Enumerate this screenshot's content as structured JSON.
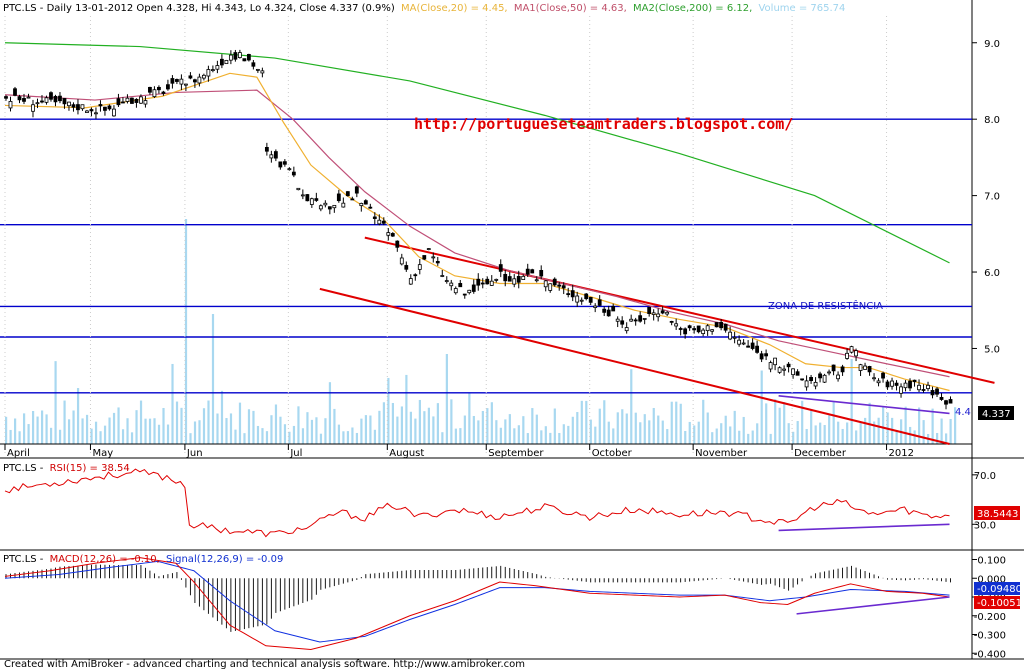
{
  "footer": "Created with AmiBroker - advanced charting and technical analysis software. http://www.amibroker.com",
  "chart_data": [
    {
      "type": "candlestick",
      "panel": "price",
      "symbol": "PTC.LS",
      "header": {
        "prefix": "PTC.LS - Daily 13-01-2012 Open 4.328, Hi 4.343, Lo 4.324, Close 4.337 (0.9%)",
        "ma20": "MA(Close,20) = 4.45,",
        "ma50": "MA1(Close,50) = 4.63,",
        "ma200": "MA2(Close,200) = 6.12,",
        "volume": "Volume = 765.74"
      },
      "y_ticks": [
        "9.0",
        "8.0",
        "7.0",
        "6.0",
        "5.0"
      ],
      "ylim": [
        3.75,
        9.35
      ],
      "last_price_label": "4.337",
      "ma_label": "4.4",
      "months": [
        "April",
        "May",
        "Jun",
        "Jul",
        "August",
        "September",
        "October",
        "November",
        "December",
        "2012"
      ],
      "annotations": {
        "url": "http://portugueseteamtraders.blogspot.com/",
        "zone": "ZONA DE RESISTÊNCIA"
      },
      "horizontal_levels": [
        8.0,
        6.62,
        5.55,
        5.15,
        4.42
      ],
      "close_path": [
        [
          0,
          8.28
        ],
        [
          10,
          8.22
        ],
        [
          22,
          8.12
        ],
        [
          35,
          8.38
        ],
        [
          43,
          8.55
        ],
        [
          50,
          8.85
        ],
        [
          54,
          8.78
        ],
        [
          57,
          8.6
        ],
        [
          58,
          7.55
        ],
        [
          62,
          7.38
        ],
        [
          66,
          7.05
        ],
        [
          70,
          6.82
        ],
        [
          74,
          6.92
        ],
        [
          78,
          6.98
        ],
        [
          82,
          6.72
        ],
        [
          86,
          6.45
        ],
        [
          90,
          5.92
        ],
        [
          94,
          6.28
        ],
        [
          98,
          5.88
        ],
        [
          102,
          5.72
        ],
        [
          106,
          5.82
        ],
        [
          110,
          5.95
        ],
        [
          114,
          5.88
        ],
        [
          118,
          5.95
        ],
        [
          122,
          5.82
        ],
        [
          126,
          5.72
        ],
        [
          130,
          5.62
        ],
        [
          134,
          5.48
        ],
        [
          138,
          5.3
        ],
        [
          142,
          5.42
        ],
        [
          146,
          5.52
        ],
        [
          150,
          5.25
        ],
        [
          154,
          5.22
        ],
        [
          158,
          5.32
        ],
        [
          162,
          5.15
        ],
        [
          166,
          4.98
        ],
        [
          170,
          4.85
        ],
        [
          174,
          4.72
        ],
        [
          178,
          4.58
        ],
        [
          182,
          4.62
        ],
        [
          186,
          4.72
        ],
        [
          188,
          5.05
        ],
        [
          190,
          4.78
        ],
        [
          194,
          4.58
        ],
        [
          198,
          4.52
        ],
        [
          202,
          4.55
        ],
        [
          206,
          4.45
        ],
        [
          208,
          4.32
        ],
        [
          210,
          4.337
        ]
      ],
      "ma20_path": [
        [
          0,
          8.18
        ],
        [
          18,
          8.15
        ],
        [
          35,
          8.3
        ],
        [
          50,
          8.6
        ],
        [
          56,
          8.55
        ],
        [
          62,
          7.95
        ],
        [
          68,
          7.4
        ],
        [
          76,
          7.0
        ],
        [
          84,
          6.7
        ],
        [
          92,
          6.2
        ],
        [
          100,
          5.95
        ],
        [
          110,
          5.85
        ],
        [
          120,
          5.85
        ],
        [
          130,
          5.68
        ],
        [
          140,
          5.5
        ],
        [
          150,
          5.38
        ],
        [
          160,
          5.28
        ],
        [
          170,
          5.05
        ],
        [
          178,
          4.8
        ],
        [
          186,
          4.75
        ],
        [
          192,
          4.75
        ],
        [
          200,
          4.6
        ],
        [
          210,
          4.45
        ]
      ],
      "ma50_path": [
        [
          0,
          8.32
        ],
        [
          20,
          8.25
        ],
        [
          38,
          8.35
        ],
        [
          56,
          8.38
        ],
        [
          64,
          8.0
        ],
        [
          72,
          7.5
        ],
        [
          80,
          7.05
        ],
        [
          90,
          6.6
        ],
        [
          100,
          6.25
        ],
        [
          112,
          6.02
        ],
        [
          124,
          5.85
        ],
        [
          136,
          5.68
        ],
        [
          148,
          5.48
        ],
        [
          160,
          5.32
        ],
        [
          172,
          5.1
        ],
        [
          184,
          4.95
        ],
        [
          196,
          4.8
        ],
        [
          210,
          4.63
        ]
      ],
      "ma200_path": [
        [
          0,
          9.0
        ],
        [
          30,
          8.95
        ],
        [
          60,
          8.8
        ],
        [
          90,
          8.5
        ],
        [
          120,
          8.05
        ],
        [
          150,
          7.55
        ],
        [
          180,
          7.0
        ],
        [
          210,
          6.12
        ]
      ],
      "channel_upper": [
        [
          80,
          6.45
        ],
        [
          220,
          4.55
        ]
      ],
      "channel_lower": [
        [
          70,
          5.78
        ],
        [
          210,
          3.75
        ]
      ],
      "support_trend": [
        [
          172,
          4.38
        ],
        [
          210,
          4.15
        ]
      ],
      "volume_spike_days": [
        40,
        46,
        98,
        188
      ]
    },
    {
      "type": "line",
      "panel": "rsi",
      "header": {
        "prefix": "PTC.LS -",
        "name": "RSI(15) = 38.54"
      },
      "y_ticks": [
        "70.0",
        "30.0"
      ],
      "ylim": [
        10,
        82
      ],
      "last_label": "38.5443",
      "path": [
        [
          0,
          58
        ],
        [
          8,
          62
        ],
        [
          16,
          66
        ],
        [
          24,
          70
        ],
        [
          30,
          72
        ],
        [
          36,
          68
        ],
        [
          40,
          62
        ],
        [
          41,
          30
        ],
        [
          50,
          25
        ],
        [
          60,
          22
        ],
        [
          68,
          28
        ],
        [
          74,
          40
        ],
        [
          80,
          35
        ],
        [
          86,
          46
        ],
        [
          92,
          36
        ],
        [
          100,
          42
        ],
        [
          110,
          36
        ],
        [
          120,
          44
        ],
        [
          130,
          36
        ],
        [
          140,
          42
        ],
        [
          150,
          38
        ],
        [
          160,
          40
        ],
        [
          168,
          34
        ],
        [
          174,
          30
        ],
        [
          180,
          44
        ],
        [
          186,
          48
        ],
        [
          192,
          38
        ],
        [
          200,
          42
        ],
        [
          206,
          36
        ],
        [
          210,
          38.5
        ]
      ],
      "trendline": [
        [
          172,
          25
        ],
        [
          210,
          30
        ]
      ]
    },
    {
      "type": "line",
      "panel": "macd",
      "header": {
        "prefix": "PTC.LS -",
        "macd": "MACD(12,26) = -0.10,",
        "signal": "Signal(12,26,9) = -0.09"
      },
      "y_ticks": [
        "0.100",
        "0.000",
        "-0.100",
        "-0.200",
        "-0.300",
        "-0.400"
      ],
      "ylim": [
        -0.42,
        0.14
      ],
      "labels": {
        "signal": "-0.09480",
        "macd": "-0.10051",
        "zero": "0.000"
      },
      "macd_path": [
        [
          0,
          0.01
        ],
        [
          10,
          0.04
        ],
        [
          20,
          0.08
        ],
        [
          30,
          0.11
        ],
        [
          38,
          0.08
        ],
        [
          42,
          -0.02
        ],
        [
          50,
          -0.25
        ],
        [
          58,
          -0.36
        ],
        [
          68,
          -0.38
        ],
        [
          78,
          -0.32
        ],
        [
          90,
          -0.2
        ],
        [
          100,
          -0.12
        ],
        [
          110,
          -0.02
        ],
        [
          118,
          -0.04
        ],
        [
          130,
          -0.08
        ],
        [
          140,
          -0.09
        ],
        [
          150,
          -0.1
        ],
        [
          160,
          -0.09
        ],
        [
          168,
          -0.13
        ],
        [
          174,
          -0.14
        ],
        [
          180,
          -0.08
        ],
        [
          188,
          -0.03
        ],
        [
          196,
          -0.07
        ],
        [
          204,
          -0.08
        ],
        [
          210,
          -0.1
        ]
      ],
      "signal_path": [
        [
          0,
          0.0
        ],
        [
          12,
          0.02
        ],
        [
          24,
          0.06
        ],
        [
          34,
          0.09
        ],
        [
          42,
          0.04
        ],
        [
          50,
          -0.12
        ],
        [
          60,
          -0.28
        ],
        [
          70,
          -0.34
        ],
        [
          80,
          -0.31
        ],
        [
          90,
          -0.22
        ],
        [
          100,
          -0.14
        ],
        [
          110,
          -0.05
        ],
        [
          120,
          -0.05
        ],
        [
          130,
          -0.07
        ],
        [
          140,
          -0.08
        ],
        [
          150,
          -0.09
        ],
        [
          160,
          -0.09
        ],
        [
          170,
          -0.12
        ],
        [
          178,
          -0.1
        ],
        [
          188,
          -0.06
        ],
        [
          200,
          -0.07
        ],
        [
          210,
          -0.09
        ]
      ],
      "trendline": [
        [
          176,
          -0.19
        ],
        [
          210,
          -0.1
        ]
      ]
    }
  ]
}
